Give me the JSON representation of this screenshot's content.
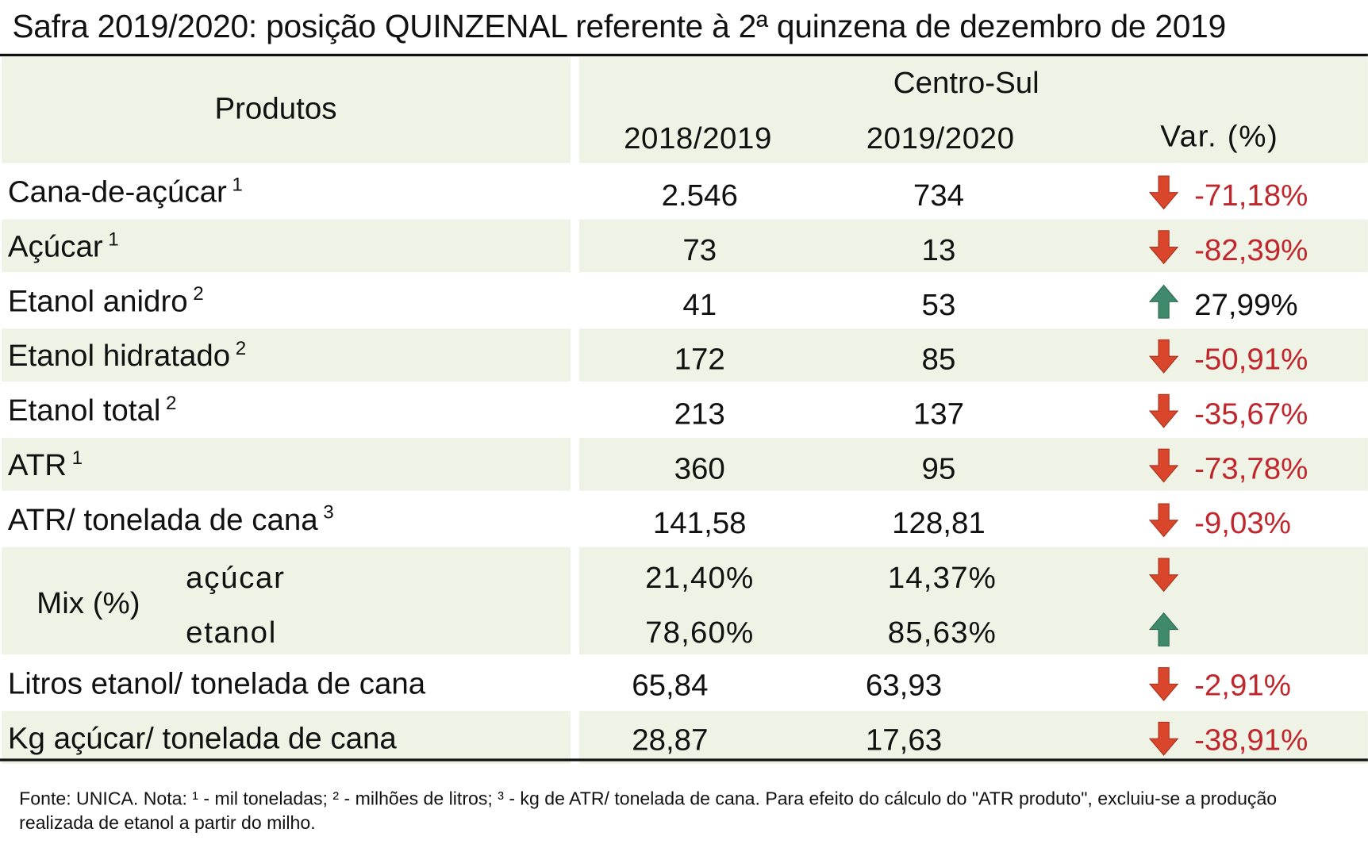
{
  "title": "Safra 2019/2020: posição QUINZENAL referente à 2ª quinzena de dezembro de 2019",
  "header": {
    "produtos": "Produtos",
    "region": "Centro-Sul",
    "col_a": "2018/2019",
    "col_b": "2019/2020",
    "col_var": "Var. (%)"
  },
  "rows": [
    {
      "label": "Cana-de-açúcar",
      "note": "1",
      "a": "2.546",
      "b": "734",
      "var": "-71,18%",
      "dir": "down"
    },
    {
      "label": "Açúcar",
      "note": "1",
      "a": "73",
      "b": "13",
      "var": "-82,39%",
      "dir": "down"
    },
    {
      "label": "Etanol anidro",
      "note": "2",
      "a": "41",
      "b": "53",
      "var": "27,99%",
      "dir": "up"
    },
    {
      "label": "Etanol hidratado",
      "note": "2",
      "a": "172",
      "b": "85",
      "var": "-50,91%",
      "dir": "down"
    },
    {
      "label": "Etanol total",
      "note": "2",
      "a": "213",
      "b": "137",
      "var": "-35,67%",
      "dir": "down"
    },
    {
      "label": "ATR",
      "note": "1",
      "a": "360",
      "b": "95",
      "var": "-73,78%",
      "dir": "down"
    },
    {
      "label": "ATR/ tonelada de cana",
      "note": "3",
      "a": "141,58",
      "b": "128,81",
      "var": "-9,03%",
      "dir": "down"
    }
  ],
  "mix": {
    "label": "Mix (%)",
    "acucar": {
      "label": "açúcar",
      "a": "21,40%",
      "b": "14,37%",
      "dir": "down"
    },
    "etanol": {
      "label": "etanol",
      "a": "78,60%",
      "b": "85,63%",
      "dir": "up"
    }
  },
  "rows_bottom": [
    {
      "label": "Litros etanol/ tonelada de cana",
      "a": "65,84",
      "b": "63,93",
      "var": "-2,91%",
      "dir": "down"
    },
    {
      "label": "Kg açúcar/ tonelada de cana",
      "a": "28,87",
      "b": "17,63",
      "var": "-38,91%",
      "dir": "down"
    }
  ],
  "footnote": "Fonte: UNICA. Nota: ¹ - mil toneladas; ² - milhões de litros; ³ - kg de ATR/ tonelada de cana. Para efeito do cálculo do \"ATR produto\", excluiu-se a produção realizada de etanol a partir do milho.",
  "colors": {
    "band": "#eef3e6",
    "down": "#d9462b",
    "up": "#3e8a6b",
    "negative_text": "#c0272d"
  },
  "icons": {
    "down": "arrow-down-icon",
    "up": "arrow-up-icon"
  }
}
